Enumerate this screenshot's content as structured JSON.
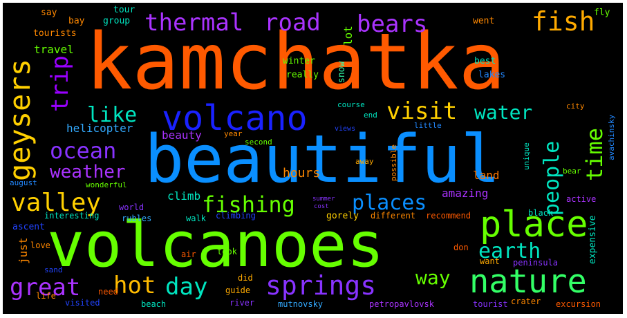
{
  "palette": {
    "background": "#000000",
    "orange": "#ff5a00",
    "blue": "#0a8fff",
    "green": "#66ff00",
    "purple": "#9b30ff",
    "yellow": "#ffd000",
    "teal": "#00e5c0",
    "indigo": "#2233ff"
  },
  "words": [
    {
      "text": "kamchatka",
      "color": "#ff5a00"
    },
    {
      "text": "beautiful",
      "color": "#0a8fff"
    },
    {
      "text": "volcanoes",
      "color": "#66ff00"
    },
    {
      "text": "volcano",
      "color": "#1a22ff"
    },
    {
      "text": "place",
      "color": "#66ff00"
    },
    {
      "text": "nature",
      "color": "#33ff66"
    },
    {
      "text": "springs",
      "color": "#8833ff"
    },
    {
      "text": "geysers",
      "color": "#ffd000"
    },
    {
      "text": "fish",
      "color": "#ffaa00"
    },
    {
      "text": "thermal",
      "color": "#aa33ff"
    },
    {
      "text": "road",
      "color": "#aa33ff"
    },
    {
      "text": "bears",
      "color": "#aa33ff"
    },
    {
      "text": "visit",
      "color": "#ffd000"
    },
    {
      "text": "water",
      "color": "#00e5c0"
    },
    {
      "text": "valley",
      "color": "#ffd000"
    },
    {
      "text": "ocean",
      "color": "#8833ff"
    },
    {
      "text": "like",
      "color": "#00e5c0"
    },
    {
      "text": "trip",
      "color": "#9900ff"
    },
    {
      "text": "fishing",
      "color": "#66ff00"
    },
    {
      "text": "places",
      "color": "#0a8fff"
    },
    {
      "text": "great",
      "color": "#aa33ff"
    },
    {
      "text": "hot",
      "color": "#ffbb00"
    },
    {
      "text": "day",
      "color": "#00e5c0"
    },
    {
      "text": "earth",
      "color": "#00e5c0"
    },
    {
      "text": "weather",
      "color": "#aa33ff"
    },
    {
      "text": "people",
      "color": "#00e5c0"
    },
    {
      "text": "time",
      "color": "#66ff00"
    },
    {
      "text": "way",
      "color": "#66ff00"
    },
    {
      "text": "hours",
      "color": "#ff8800"
    },
    {
      "text": "helicopter",
      "color": "#33aaff"
    },
    {
      "text": "beauty",
      "color": "#aa33ff"
    },
    {
      "text": "amazing",
      "color": "#aa33ff"
    },
    {
      "text": "land",
      "color": "#ff7700"
    },
    {
      "text": "climb",
      "color": "#00e5c0"
    },
    {
      "text": "travel",
      "color": "#66ff00"
    },
    {
      "text": "tourists",
      "color": "#ff8800"
    },
    {
      "text": "say",
      "color": "#ff8800"
    },
    {
      "text": "bay",
      "color": "#ff8800"
    },
    {
      "text": "group",
      "color": "#00e5c0"
    },
    {
      "text": "tour",
      "color": "#00e5c0"
    },
    {
      "text": "winter",
      "color": "#66ff00"
    },
    {
      "text": "really",
      "color": "#66ff00"
    },
    {
      "text": "snow",
      "color": "#33ffaa"
    },
    {
      "text": "lot",
      "color": "#66ff00"
    },
    {
      "text": "went",
      "color": "#ff8800"
    },
    {
      "text": "best",
      "color": "#00e5c0"
    },
    {
      "text": "lakes",
      "color": "#2288ff"
    },
    {
      "text": "fly",
      "color": "#66ff00"
    },
    {
      "text": "course",
      "color": "#00e5c0"
    },
    {
      "text": "end",
      "color": "#00e5c0"
    },
    {
      "text": "city",
      "color": "#ff8800"
    },
    {
      "text": "little",
      "color": "#2288ff"
    },
    {
      "text": "avachinsky",
      "color": "#2288ff"
    },
    {
      "text": "views",
      "color": "#2244ff"
    },
    {
      "text": "unique",
      "color": "#00e5c0"
    },
    {
      "text": "possible",
      "color": "#ff8800"
    },
    {
      "text": "year",
      "color": "#ff8800"
    },
    {
      "text": "second",
      "color": "#66ff00"
    },
    {
      "text": "away",
      "color": "#ffaa00"
    },
    {
      "text": "bear",
      "color": "#66ff00"
    },
    {
      "text": "black",
      "color": "#00e5c0"
    },
    {
      "text": "active",
      "color": "#aa33ff"
    },
    {
      "text": "world",
      "color": "#8833ff"
    },
    {
      "text": "rubles",
      "color": "#33aaff"
    },
    {
      "text": "ascent",
      "color": "#2244ff"
    },
    {
      "text": "interesting",
      "color": "#00e5c0"
    },
    {
      "text": "wonderful",
      "color": "#66ff00"
    },
    {
      "text": "august",
      "color": "#2288ff"
    },
    {
      "text": "walk",
      "color": "#00e5c0"
    },
    {
      "text": "climbing",
      "color": "#2244ff"
    },
    {
      "text": "gorely",
      "color": "#ffd000"
    },
    {
      "text": "different",
      "color": "#ff8800"
    },
    {
      "text": "recommend",
      "color": "#ff5a00"
    },
    {
      "text": "expensive",
      "color": "#00e5c0"
    },
    {
      "text": "just",
      "color": "#ff8800"
    },
    {
      "text": "love",
      "color": "#ff8800"
    },
    {
      "text": "sand",
      "color": "#2244ff"
    },
    {
      "text": "took",
      "color": "#66ff00"
    },
    {
      "text": "air",
      "color": "#ff5a00"
    },
    {
      "text": "don",
      "color": "#ff5a00"
    },
    {
      "text": "want",
      "color": "#ffaa00"
    },
    {
      "text": "peninsula",
      "color": "#8833ff"
    },
    {
      "text": "life",
      "color": "#ff8800"
    },
    {
      "text": "need",
      "color": "#ff5a00"
    },
    {
      "text": "did",
      "color": "#ffaa00"
    },
    {
      "text": "guide",
      "color": "#ffaa00"
    },
    {
      "text": "visited",
      "color": "#2244ff"
    },
    {
      "text": "beach",
      "color": "#00e5c0"
    },
    {
      "text": "river",
      "color": "#8833ff"
    },
    {
      "text": "mutnovsky",
      "color": "#33aaff"
    },
    {
      "text": "petropavlovsk",
      "color": "#aa33ff"
    },
    {
      "text": "tourist",
      "color": "#8833ff"
    },
    {
      "text": "crater",
      "color": "#ff8800"
    },
    {
      "text": "excursion",
      "color": "#ff5a00"
    },
    {
      "text": "summer",
      "color": "#8833ff"
    },
    {
      "text": "cost",
      "color": "#8833ff"
    }
  ]
}
